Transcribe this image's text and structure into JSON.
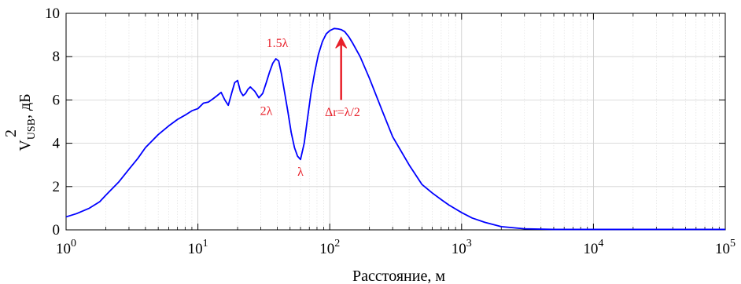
{
  "chart_data": {
    "type": "line",
    "xscale": "log",
    "xlim": [
      1,
      100000
    ],
    "ylim": [
      0,
      10
    ],
    "grid": true,
    "xlabel": "Расстояние, м",
    "ylabel": {
      "base": "V",
      "sup": "2",
      "sub": "USB",
      "suffix": ", дБ"
    },
    "yticks": [
      "0",
      "2",
      "4",
      "6",
      "8",
      "10"
    ],
    "xticks": [
      {
        "base": "10",
        "exp": "0"
      },
      {
        "base": "10",
        "exp": "1"
      },
      {
        "base": "10",
        "exp": "2"
      },
      {
        "base": "10",
        "exp": "3"
      },
      {
        "base": "10",
        "exp": "4"
      },
      {
        "base": "10",
        "exp": "5"
      }
    ],
    "series": [
      {
        "color": "#0000ff",
        "x": [
          1,
          1.2,
          1.5,
          1.8,
          2,
          2.5,
          3,
          3.5,
          4,
          5,
          6,
          7,
          8,
          9,
          10,
          11,
          12,
          13,
          14,
          15,
          16,
          17,
          18,
          19,
          20,
          21,
          22,
          23,
          24,
          25,
          27,
          29,
          31,
          33,
          35,
          37,
          39,
          41,
          43,
          45,
          48,
          51,
          54,
          57,
          60,
          64,
          68,
          72,
          77,
          82,
          88,
          94,
          100,
          108,
          116,
          122,
          130,
          140,
          150,
          170,
          200,
          250,
          300,
          400,
          500,
          600,
          700,
          800,
          1000,
          1200,
          1500,
          2000,
          3000,
          5000,
          10000,
          100000
        ],
        "y": [
          0.6,
          0.75,
          1.0,
          1.3,
          1.6,
          2.2,
          2.8,
          3.3,
          3.8,
          4.4,
          4.8,
          5.1,
          5.3,
          5.5,
          5.6,
          5.85,
          5.9,
          6.05,
          6.2,
          6.35,
          6.0,
          5.75,
          6.3,
          6.8,
          6.9,
          6.4,
          6.2,
          6.3,
          6.5,
          6.6,
          6.4,
          6.1,
          6.3,
          6.8,
          7.3,
          7.7,
          7.9,
          7.8,
          7.2,
          6.5,
          5.5,
          4.5,
          3.8,
          3.4,
          3.25,
          4.0,
          5.2,
          6.3,
          7.3,
          8.1,
          8.7,
          9.05,
          9.2,
          9.3,
          9.28,
          9.25,
          9.15,
          8.9,
          8.6,
          8.0,
          7.0,
          5.5,
          4.3,
          3.0,
          2.1,
          1.7,
          1.4,
          1.15,
          0.8,
          0.55,
          0.35,
          0.15,
          0.05,
          0.02,
          0.02,
          0.02
        ]
      }
    ],
    "annotations": [
      {
        "text": "1.5λ",
        "x": 40,
        "y": 8.45
      },
      {
        "text": "2λ",
        "x": 33,
        "y": 5.3
      },
      {
        "text": "λ",
        "x": 60,
        "y": 2.5
      },
      {
        "text": "Δr=λ/2",
        "x": 125,
        "y": 5.25
      }
    ],
    "arrow": {
      "from": [
        122,
        6.0
      ],
      "to": [
        122,
        8.9
      ],
      "color": "#e8202a"
    }
  }
}
